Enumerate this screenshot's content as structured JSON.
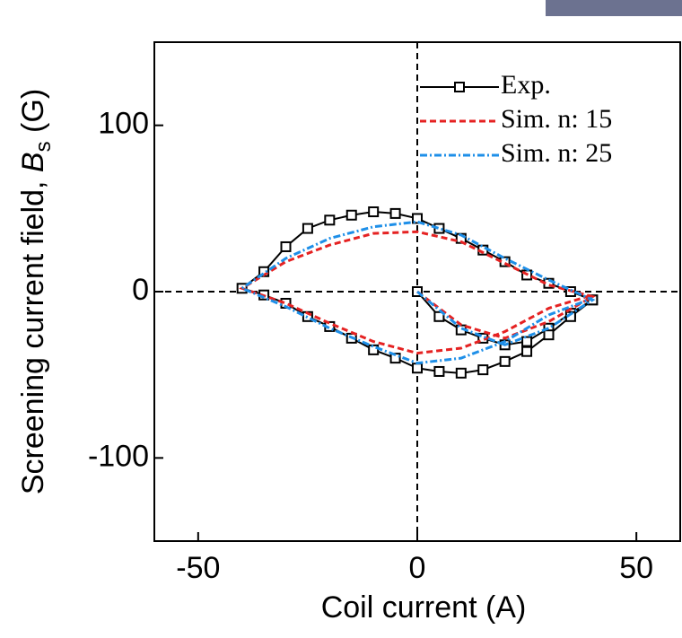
{
  "chart_data": {
    "type": "line",
    "x_label": "Coil current (A)",
    "y_label": {
      "text": "Screening current field,",
      "symbol": "B",
      "subscript": "s",
      "unit": "(G)"
    },
    "xlim": [
      -60,
      60
    ],
    "ylim": [
      -150,
      150
    ],
    "xticks": [
      -50,
      0,
      50
    ],
    "yticks": [
      -100,
      0,
      100
    ],
    "zero_lines": true,
    "legend": "upper right",
    "series": [
      {
        "name": "Exp.",
        "color": "#000000",
        "linestyle": "solid",
        "marker": "square",
        "x": [
          0,
          5,
          10,
          15,
          20,
          25,
          30,
          35,
          40,
          35,
          30,
          25,
          20,
          15,
          10,
          5,
          0,
          -5,
          -10,
          -15,
          -20,
          -25,
          -30,
          -35,
          -40,
          -35,
          -30,
          -25,
          -20,
          -15,
          -10,
          -5,
          0,
          5,
          10,
          15,
          20,
          25,
          30,
          35,
          40
        ],
        "values": [
          0,
          -15,
          -23,
          -28,
          -32,
          -30,
          -22,
          -13,
          -5,
          0,
          5,
          10,
          18,
          25,
          32,
          38,
          44,
          47,
          48,
          46,
          43,
          38,
          27,
          12,
          2,
          -2,
          -7,
          -15,
          -21,
          -28,
          -35,
          -40,
          -46,
          -48,
          -49,
          -47,
          -42,
          -36,
          -26,
          -15,
          -5
        ]
      },
      {
        "name": "Sim. n: 15",
        "color": "#e52222",
        "linestyle": "dashed",
        "x": [
          0,
          10,
          20,
          30,
          40,
          30,
          20,
          10,
          0,
          -10,
          -20,
          -30,
          -40,
          -30,
          -20,
          -10,
          0,
          10,
          20,
          30,
          40
        ],
        "values": [
          0,
          -20,
          -28,
          -18,
          -3,
          4,
          17,
          30,
          36,
          35,
          28,
          18,
          2,
          -7,
          -19,
          -30,
          -37,
          -34,
          -24,
          -10,
          -2
        ]
      },
      {
        "name": "Sim. n: 25",
        "color": "#1e8fe8",
        "linestyle": "dashdot",
        "x": [
          0,
          10,
          20,
          30,
          40,
          30,
          20,
          10,
          0,
          -10,
          -20,
          -30,
          -40,
          -30,
          -20,
          -10,
          0,
          10,
          20,
          30,
          40
        ],
        "values": [
          0,
          -22,
          -32,
          -22,
          -5,
          7,
          20,
          34,
          42,
          39,
          32,
          20,
          2,
          -9,
          -22,
          -33,
          -43,
          -40,
          -30,
          -14,
          -4
        ]
      }
    ]
  }
}
